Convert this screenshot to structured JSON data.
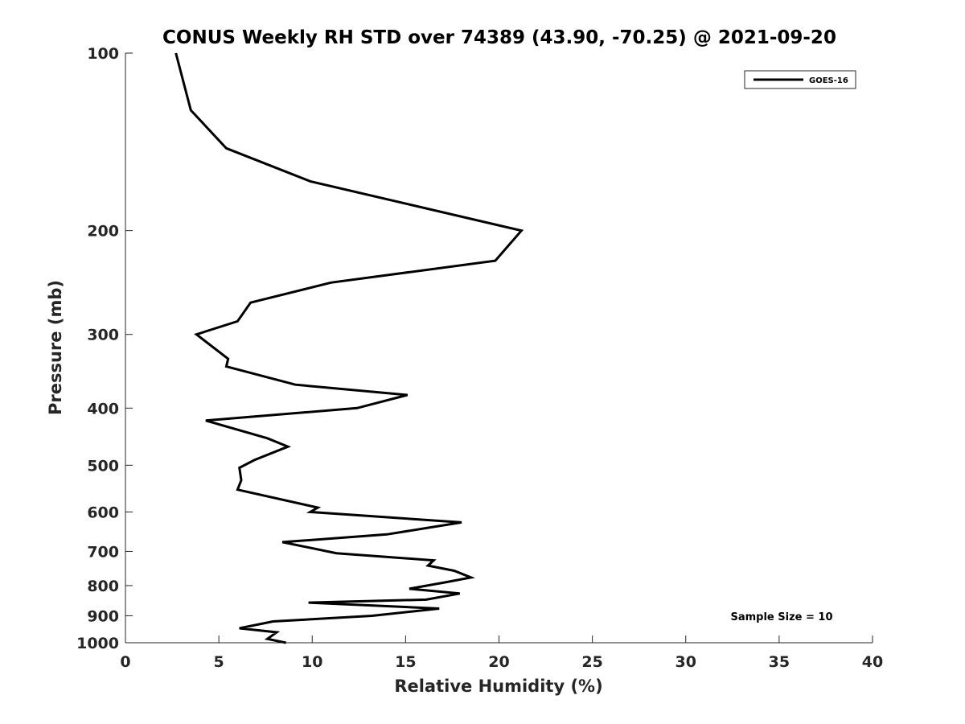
{
  "chart_data": {
    "type": "line",
    "title": "CONUS Weekly RH STD over 74389 (43.90, -70.25) @ 2021-09-20",
    "xlabel": "Relative Humidity (%)",
    "ylabel": "Pressure (mb)",
    "xlim": [
      0,
      40
    ],
    "ylim": [
      1000,
      100
    ],
    "yscale": "log",
    "y_reversed": true,
    "x_ticks": [
      0,
      5,
      10,
      15,
      20,
      25,
      30,
      35,
      40
    ],
    "y_ticks": [
      100,
      200,
      300,
      400,
      500,
      600,
      700,
      800,
      900,
      1000
    ],
    "grid": false,
    "legend": {
      "position": "top-right",
      "entries": [
        "GOES-16"
      ]
    },
    "annotation": "Sample Size = 10",
    "series": [
      {
        "name": "GOES-16",
        "color": "#000000",
        "x": [
          8.6,
          7.6,
          8.1,
          6.1,
          7.9,
          13.2,
          16.8,
          9.8,
          16.1,
          17.9,
          15.2,
          17.1,
          18.5,
          17.6,
          16.2,
          16.5,
          11.3,
          8.4,
          14.0,
          18.0,
          9.9,
          10.3,
          6.0,
          6.2,
          6.1,
          6.9,
          8.7,
          7.6,
          4.3,
          12.4,
          15.1,
          9.1,
          5.4,
          5.5,
          3.8,
          6.0,
          6.7,
          11.0,
          19.8,
          21.2,
          9.9,
          5.4,
          3.5,
          2.7
        ],
        "y": [
          1000,
          985,
          960,
          945,
          920,
          900,
          875,
          855,
          845,
          825,
          810,
          790,
          775,
          755,
          740,
          725,
          705,
          675,
          655,
          625,
          600,
          590,
          550,
          530,
          505,
          490,
          465,
          450,
          420,
          400,
          380,
          365,
          340,
          330,
          300,
          285,
          265,
          245,
          225,
          200,
          165,
          145,
          125,
          100
        ]
      }
    ]
  }
}
